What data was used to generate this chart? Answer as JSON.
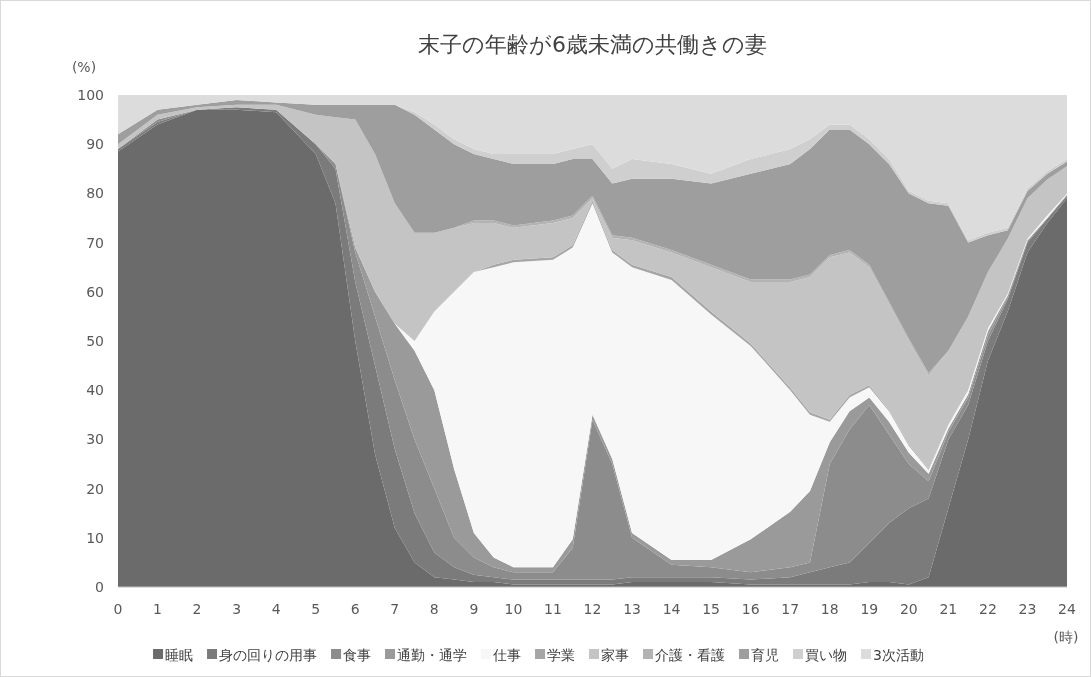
{
  "chart_data": {
    "type": "area",
    "title": "末子の年齢が6歳未満の共働きの妻",
    "ylabel": "(%)",
    "xlabel": "(時)",
    "stacked": true,
    "legend": "bottom",
    "xlim": [
      0,
      24
    ],
    "ylim": [
      0,
      100
    ],
    "xticks": [
      0,
      1,
      2,
      3,
      4,
      5,
      6,
      7,
      8,
      9,
      10,
      11,
      12,
      13,
      14,
      15,
      16,
      17,
      18,
      19,
      20,
      21,
      22,
      23,
      24
    ],
    "yticks": [
      0,
      10,
      20,
      30,
      40,
      50,
      60,
      70,
      80,
      90,
      100
    ],
    "x": [
      0,
      1,
      2,
      3,
      4,
      5,
      5.5,
      6,
      6.5,
      7,
      7.5,
      8,
      8.5,
      9,
      9.5,
      10,
      11,
      11.5,
      12,
      12.5,
      13,
      14,
      15,
      16,
      17,
      17.5,
      18,
      18.5,
      19,
      19.5,
      20,
      20.5,
      21,
      21.5,
      22,
      22.5,
      23,
      23.5,
      24
    ],
    "series": [
      {
        "name": "睡眠",
        "color": "#6b6b6b",
        "values": [
          88.5,
          94,
          97,
          97,
          96.5,
          88,
          78,
          50,
          27,
          12,
          5,
          2,
          1.5,
          1,
          1,
          0.5,
          0.5,
          0.5,
          0.5,
          0.5,
          1,
          1,
          1,
          0.5,
          0.5,
          0.5,
          0.5,
          0.5,
          1,
          1,
          0.5,
          2,
          16,
          30,
          46,
          56,
          68,
          74,
          79
        ]
      },
      {
        "name": "身の回りの用事",
        "color": "#7b7b7b",
        "values": [
          0.5,
          0.5,
          0,
          0.5,
          0.5,
          2,
          7,
          12,
          18,
          16,
          10,
          5,
          2.5,
          1.5,
          1,
          1,
          1,
          1,
          1,
          1,
          1,
          1,
          1,
          1,
          1.5,
          2.5,
          3.5,
          4.5,
          8,
          12,
          15.5,
          16,
          14,
          7,
          4,
          2.5,
          2,
          0.8,
          0.5
        ]
      },
      {
        "name": "食事",
        "color": "#8c8c8c",
        "values": [
          0,
          0.5,
          0,
          0,
          0,
          0,
          1,
          6,
          10,
          14,
          15,
          13,
          6,
          3.5,
          2,
          1.5,
          1.5,
          6.5,
          32.5,
          23.5,
          8,
          2.5,
          2,
          1.5,
          2,
          2,
          21,
          27,
          28,
          18,
          9,
          3.5,
          1.5,
          1.5,
          1,
          0.5,
          0.3,
          0.2,
          0.1
        ]
      },
      {
        "name": "通勤・通学",
        "color": "#9a9a9a",
        "values": [
          0,
          0,
          0,
          0,
          0,
          0,
          0,
          1,
          5,
          11.5,
          18,
          20,
          14,
          5,
          2,
          1,
          1,
          1.7,
          1,
          1,
          1,
          1,
          1.5,
          6.7,
          11.3,
          14.5,
          4.4,
          3.7,
          1.5,
          2.6,
          2.3,
          1.5,
          0.7,
          0.7,
          1,
          0.3,
          0.2,
          0,
          0.2
        ]
      },
      {
        "name": "仕事",
        "color": "#f7f7f7",
        "values": [
          0,
          0,
          0,
          0,
          0,
          0,
          0,
          0,
          0,
          0,
          2,
          16,
          36,
          53,
          59,
          62,
          62.5,
          59.3,
          43,
          42,
          54,
          56.9,
          49.9,
          39.3,
          24.7,
          15.5,
          4.2,
          2.8,
          2.1,
          2.1,
          1.4,
          0.8,
          0.8,
          0.8,
          0.6,
          0.3,
          0.3,
          0.5,
          0.2
        ]
      },
      {
        "name": "学業",
        "color": "#a6a6a6",
        "values": [
          0,
          0,
          0,
          0,
          0,
          0,
          0,
          0,
          0,
          0,
          0,
          0,
          0,
          0,
          0.5,
          0.5,
          0.5,
          0.5,
          0.5,
          0.5,
          0.5,
          0.6,
          0.6,
          0.5,
          0.5,
          0.5,
          0.4,
          0.5,
          0.4,
          0.3,
          0.3,
          0.2,
          0,
          0,
          0,
          0,
          0,
          0,
          0
        ]
      },
      {
        "name": "家事",
        "color": "#c4c4c4",
        "values": [
          1,
          1,
          0.5,
          0.5,
          1,
          6,
          9.5,
          26,
          28,
          24.5,
          22,
          16,
          13,
          10,
          8.5,
          6.5,
          7,
          5.5,
          0.5,
          2.5,
          5,
          5,
          9,
          12.5,
          21.5,
          27.5,
          33,
          29,
          24,
          21.5,
          21,
          19,
          15,
          15,
          11.4,
          11.2,
          8.2,
          7.3,
          5.5
        ]
      },
      {
        "name": "介護・看護",
        "color": "#b3b3b3",
        "values": [
          0,
          0,
          0,
          0,
          0,
          0,
          0,
          0,
          0,
          0,
          0,
          0,
          0,
          0.5,
          0.5,
          0.5,
          0.5,
          0.5,
          0.5,
          0.5,
          0.5,
          0.5,
          0.5,
          0.5,
          0.5,
          0.5,
          0.5,
          0.5,
          0.5,
          0.5,
          0.5,
          0.5,
          0,
          0,
          0,
          0,
          0,
          0,
          0
        ]
      },
      {
        "name": "育児",
        "color": "#9e9e9e",
        "values": [
          2,
          1,
          0.5,
          1,
          0.5,
          2,
          2.5,
          3,
          10,
          20,
          24,
          21,
          17,
          13.5,
          12.5,
          12.5,
          11.5,
          11.5,
          7.5,
          10.5,
          12,
          14.5,
          16.5,
          21.5,
          23.5,
          25.5,
          25.5,
          24.5,
          24.5,
          28,
          29.5,
          34.5,
          29.5,
          15,
          7.5,
          1.7,
          1.5,
          1.2,
          1
        ]
      },
      {
        "name": "買い物",
        "color": "#cfcfcf",
        "values": [
          0,
          0,
          0,
          0,
          0,
          0,
          0,
          0,
          0,
          0,
          0.5,
          1,
          1,
          1,
          1,
          2,
          2,
          2,
          3,
          3,
          4,
          3,
          2,
          3,
          3,
          2,
          1,
          1,
          1,
          1,
          0.5,
          0.5,
          0.5,
          0.5,
          0.5,
          0.5,
          0.5,
          0.5,
          0.5
        ]
      },
      {
        "name": "3次活動",
        "color": "#dcdcdc",
        "values": [
          8,
          3,
          2,
          1,
          1.5,
          2,
          2,
          2,
          2,
          2,
          3.5,
          6,
          9,
          11,
          12,
          12,
          12,
          11,
          10,
          15,
          13,
          14,
          16,
          13,
          11,
          9,
          6,
          6,
          9,
          13,
          19.5,
          21.5,
          22,
          29.5,
          28,
          27,
          19,
          15.5,
          13
        ]
      }
    ]
  }
}
